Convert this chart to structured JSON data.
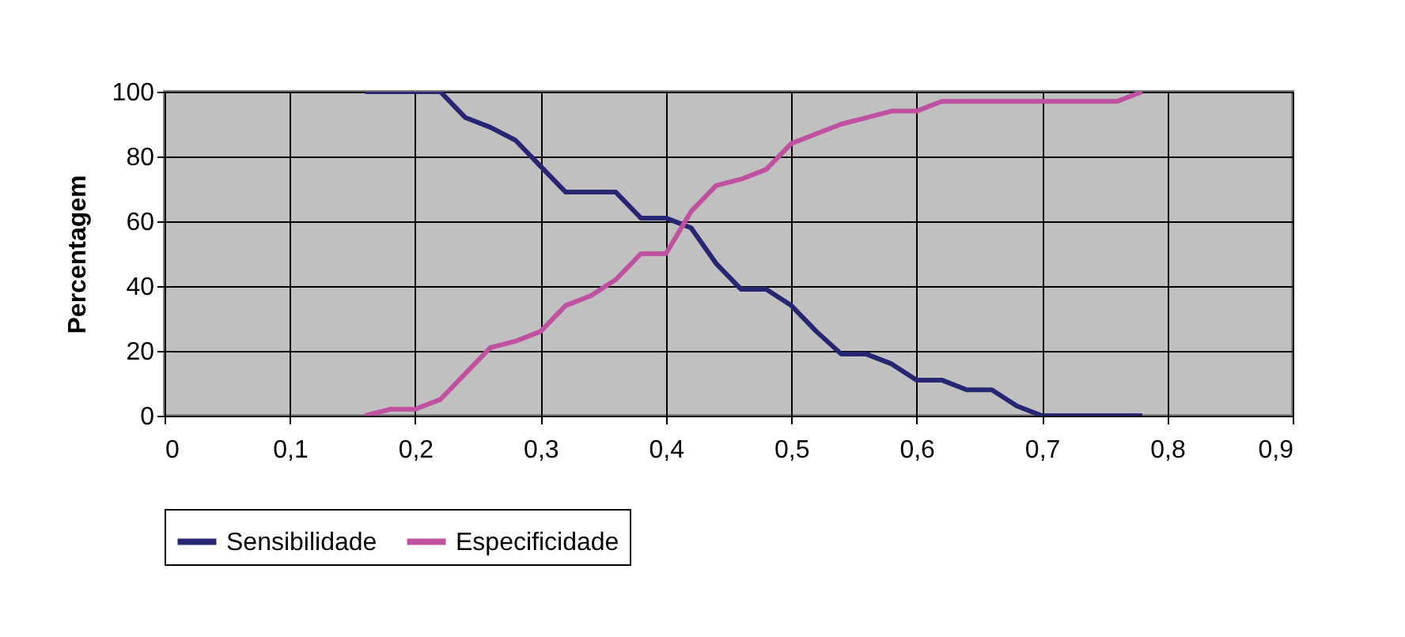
{
  "chart_data": {
    "type": "line",
    "ylabel": "Percentagem",
    "x": [
      0.16,
      0.18,
      0.2,
      0.22,
      0.24,
      0.26,
      0.28,
      0.3,
      0.32,
      0.34,
      0.36,
      0.38,
      0.4,
      0.42,
      0.44,
      0.46,
      0.48,
      0.5,
      0.52,
      0.54,
      0.56,
      0.58,
      0.6,
      0.62,
      0.64,
      0.66,
      0.68,
      0.7,
      0.72,
      0.74,
      0.76,
      0.78
    ],
    "series": [
      {
        "name": "Sensibilidade",
        "color": "#262673",
        "values": [
          100,
          100,
          100,
          100,
          92,
          89,
          85,
          77,
          69,
          69,
          69,
          61,
          61,
          58,
          47,
          39,
          39,
          34,
          26,
          19,
          19,
          16,
          11,
          11,
          8,
          8,
          3,
          0,
          0,
          0,
          0,
          0
        ]
      },
      {
        "name": "Especificidade",
        "color": "#c050a0",
        "values": [
          0,
          2,
          2,
          5,
          13,
          21,
          23,
          26,
          34,
          37,
          42,
          50,
          50,
          63,
          71,
          73,
          76,
          84,
          87,
          90,
          92,
          94,
          94,
          97,
          97,
          97,
          97,
          97,
          97,
          97,
          97,
          100
        ]
      }
    ],
    "xlim": [
      0,
      0.9
    ],
    "xticks": [
      {
        "value": 0,
        "label": "0"
      },
      {
        "value": 0.1,
        "label": "0,1"
      },
      {
        "value": 0.2,
        "label": "0,2"
      },
      {
        "value": 0.3,
        "label": "0,3"
      },
      {
        "value": 0.4,
        "label": "0,4"
      },
      {
        "value": 0.5,
        "label": "0,5"
      },
      {
        "value": 0.6,
        "label": "0,6"
      },
      {
        "value": 0.7,
        "label": "0,7"
      },
      {
        "value": 0.8,
        "label": "0,8"
      },
      {
        "value": 0.9,
        "label": "0,9"
      }
    ],
    "ylim": [
      0,
      100
    ],
    "yticks": [
      0,
      20,
      40,
      60,
      80,
      100
    ],
    "grid": true,
    "legend": "bottom",
    "marker": "none",
    "line_style": "solid"
  }
}
